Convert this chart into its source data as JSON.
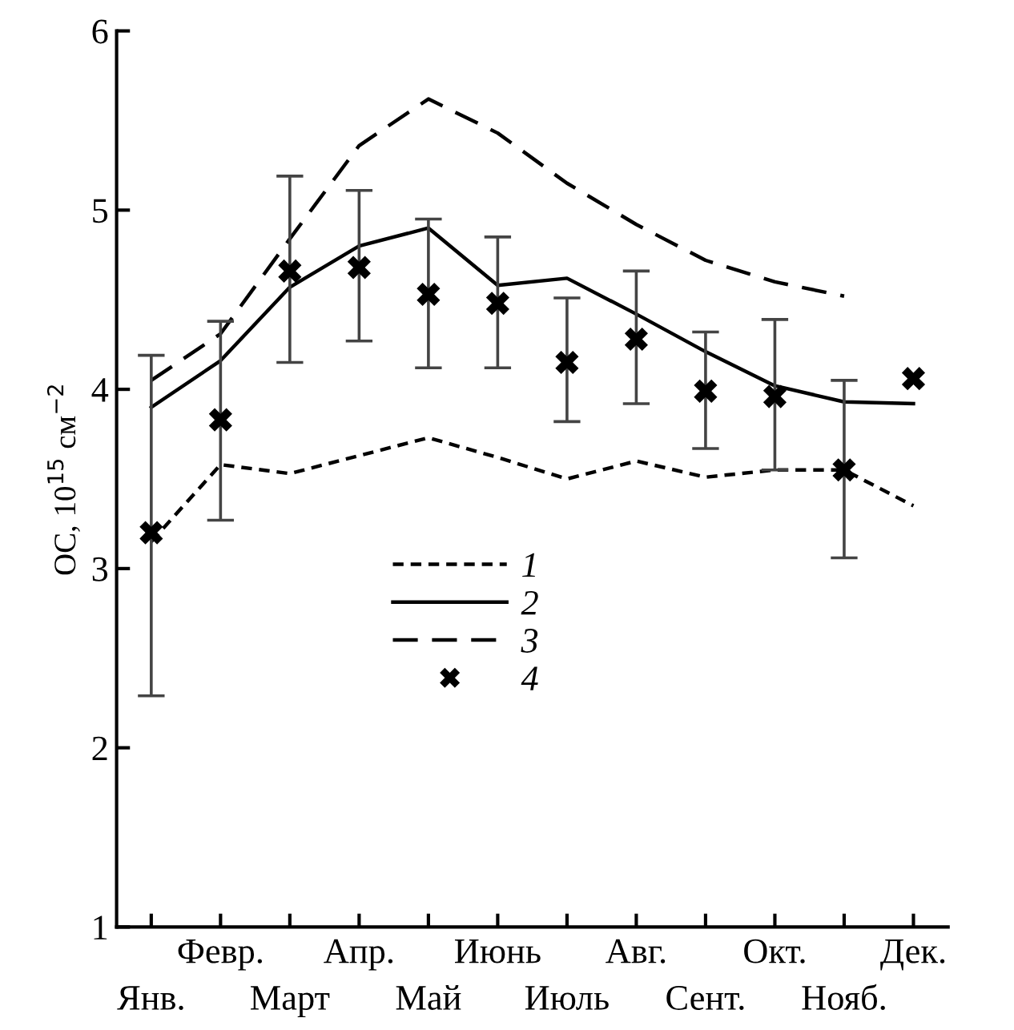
{
  "chart_data": {
    "type": "line",
    "ylabel": "ОС, 10$^{15}$ см$^{−2}$",
    "categories": [
      "Янв.",
      "Февр.",
      "Март",
      "Апр.",
      "Май",
      "Июнь",
      "Июль",
      "Авг.",
      "Сент.",
      "Окт.",
      "Нояб.",
      "Дек."
    ],
    "ylim": [
      1,
      6
    ],
    "yticks": [
      1,
      2,
      3,
      4,
      5,
      6
    ],
    "grid": false,
    "legend": "lower center",
    "series": [
      {
        "name": "1",
        "color": "#000000",
        "line_style": "dotted",
        "values": [
          3.15,
          3.58,
          3.53,
          3.63,
          3.73,
          3.62,
          3.5,
          3.6,
          3.51,
          3.55,
          3.55,
          3.35
        ]
      },
      {
        "name": "2",
        "color": "#000000",
        "line_style": "solid",
        "values": [
          3.9,
          4.16,
          4.57,
          4.8,
          4.9,
          4.58,
          4.62,
          4.42,
          4.21,
          4.02,
          3.93,
          3.92
        ]
      },
      {
        "name": "3",
        "color": "#000000",
        "line_style": "dashed",
        "values": [
          4.05,
          4.31,
          4.84,
          5.36,
          5.62,
          5.43,
          5.15,
          4.92,
          4.72,
          4.6,
          4.52,
          null
        ]
      },
      {
        "name": "4",
        "type": "scatter",
        "color": "#000000",
        "marker": "cross",
        "values": [
          3.2,
          3.83,
          4.66,
          4.68,
          4.53,
          4.48,
          4.15,
          4.28,
          3.99,
          3.96,
          3.55,
          4.06
        ],
        "errors": [
          [
            2.29,
            4.19
          ],
          [
            3.27,
            4.38
          ],
          [
            4.15,
            5.19
          ],
          [
            4.27,
            5.11
          ],
          [
            4.12,
            4.95
          ],
          [
            4.12,
            4.85
          ],
          [
            3.82,
            4.51
          ],
          [
            3.92,
            4.66
          ],
          [
            3.67,
            4.32
          ],
          [
            3.55,
            4.39
          ],
          [
            3.06,
            4.05
          ],
          null
        ]
      }
    ]
  }
}
